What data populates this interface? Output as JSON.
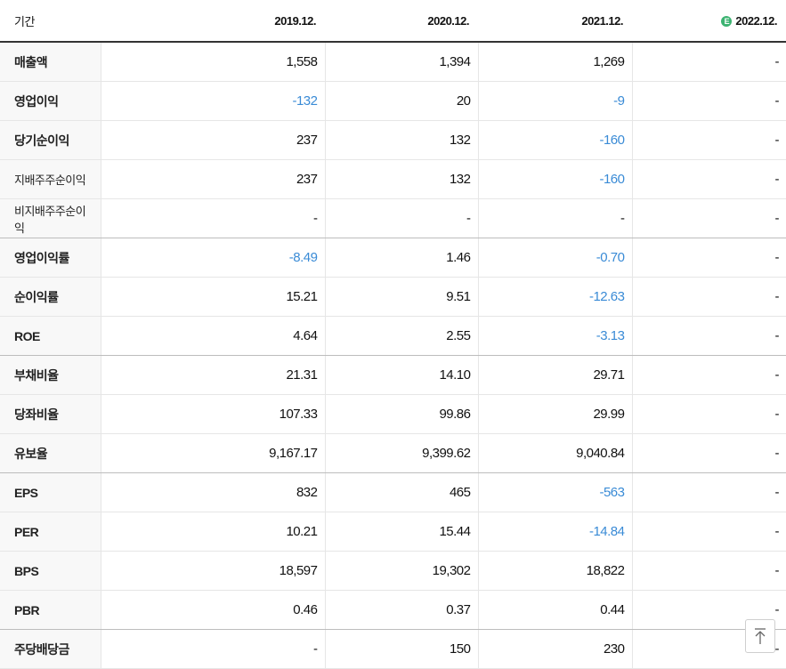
{
  "header": {
    "label": "기간",
    "periods": [
      "2019.12.",
      "2020.12.",
      "2021.12.",
      "2022.12."
    ],
    "estimate_icon": "E"
  },
  "rows": [
    {
      "label": "매출액",
      "values": [
        "1,558",
        "1,394",
        "1,269",
        "-"
      ]
    },
    {
      "label": "영업이익",
      "values": [
        "-132",
        "20",
        "-9",
        "-"
      ]
    },
    {
      "label": "당기순이익",
      "values": [
        "237",
        "132",
        "-160",
        "-"
      ]
    },
    {
      "label": "지배주주순이익",
      "values": [
        "237",
        "132",
        "-160",
        "-"
      ]
    },
    {
      "label": "비지배주주순이익",
      "values": [
        "-",
        "-",
        "-",
        "-"
      ]
    },
    {
      "label": "영업이익률",
      "values": [
        "-8.49",
        "1.46",
        "-0.70",
        "-"
      ]
    },
    {
      "label": "순이익률",
      "values": [
        "15.21",
        "9.51",
        "-12.63",
        "-"
      ]
    },
    {
      "label": "ROE",
      "values": [
        "4.64",
        "2.55",
        "-3.13",
        "-"
      ]
    },
    {
      "label": "부채비율",
      "values": [
        "21.31",
        "14.10",
        "29.71",
        "-"
      ]
    },
    {
      "label": "당좌비율",
      "values": [
        "107.33",
        "99.86",
        "29.99",
        "-"
      ]
    },
    {
      "label": "유보율",
      "values": [
        "9,167.17",
        "9,399.62",
        "9,040.84",
        "-"
      ]
    },
    {
      "label": "EPS",
      "values": [
        "832",
        "465",
        "-563",
        "-"
      ]
    },
    {
      "label": "PER",
      "values": [
        "10.21",
        "15.44",
        "-14.84",
        "-"
      ]
    },
    {
      "label": "BPS",
      "values": [
        "18,597",
        "19,302",
        "18,822",
        "-"
      ]
    },
    {
      "label": "PBR",
      "values": [
        "0.46",
        "0.37",
        "0.44",
        "-"
      ]
    },
    {
      "label": "주당배당금",
      "values": [
        "-",
        "150",
        "230",
        "-"
      ]
    }
  ],
  "colors": {
    "negative": "#3a8bd6",
    "estimate": "#3cb371"
  },
  "top_button_icon": "arrow-up-to-top-icon"
}
